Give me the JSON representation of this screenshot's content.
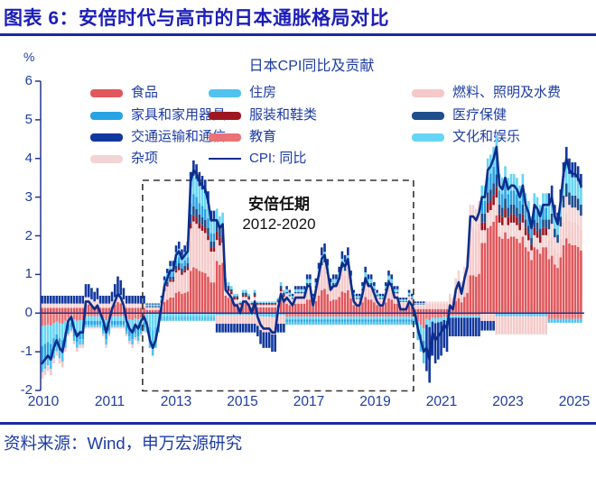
{
  "header": {
    "title": "图表 6：安倍时代与高市的日本通胀格局对比"
  },
  "footer": {
    "source": "资料来源：Wind，申万宏源研究"
  },
  "chart_data": {
    "type": "stacked-bar+line",
    "title": "日本CPI同比及贡献",
    "y_unit": "%",
    "ylim": [
      -2,
      6
    ],
    "y_ticks": [
      6,
      5,
      4,
      3,
      2,
      1,
      0,
      -1,
      -2
    ],
    "x_tick_labels": [
      "2010",
      "2011",
      "2013",
      "2015",
      "2017",
      "2019",
      "2021",
      "2023",
      "2025"
    ],
    "x_start": "2010-01",
    "x_end": "2025-06",
    "x_freq": "monthly",
    "grid": "off",
    "annotation": {
      "line1": "安倍任期",
      "line2": "2012-2020",
      "box_from": "2012-12",
      "box_to": "2020-08",
      "box_color": "#333333"
    },
    "axis_color": "#23368F",
    "components": [
      {
        "id": "food",
        "label": "食品",
        "color": "#E0585C"
      },
      {
        "id": "housing",
        "label": "住房",
        "color": "#4FC3F0"
      },
      {
        "id": "fuel",
        "label": "燃料、照明及水费",
        "color": "#F5C9C9"
      },
      {
        "id": "furniture",
        "label": "家具和家用器具",
        "color": "#29A3E3"
      },
      {
        "id": "clothing",
        "label": "服装和鞋类",
        "color": "#9E1620"
      },
      {
        "id": "medical",
        "label": "医疗保健",
        "color": "#1F4E8C"
      },
      {
        "id": "transport",
        "label": "交通运输和通信",
        "color": "#12389E"
      },
      {
        "id": "education",
        "label": "教育",
        "color": "#EA7276"
      },
      {
        "id": "culture",
        "label": "文化和娱乐",
        "color": "#66D5F5"
      },
      {
        "id": "misc",
        "label": "杂项",
        "color": "#F3D4D4"
      }
    ],
    "legend": {
      "rows": [
        [
          "food",
          "housing",
          "fuel"
        ],
        [
          "furniture",
          "clothing",
          "medical"
        ],
        [
          "transport",
          "education",
          "culture"
        ],
        [
          "misc",
          "cpi_line"
        ]
      ]
    },
    "line_series": {
      "name": "CPI: 同比",
      "color": "#0B2D8C",
      "start_year": 2010,
      "values_by_year": [
        [
          -1.3,
          -1.2,
          -1.1,
          -1.2,
          -0.9,
          -0.7,
          -0.9,
          -1.0,
          -0.6,
          -0.2,
          -0.1,
          -0.4
        ],
        [
          -0.6,
          -0.5,
          -0.5,
          0.3,
          0.3,
          0.2,
          0.1,
          0.2,
          0.0,
          -0.2,
          -0.5,
          -0.2
        ],
        [
          0.1,
          0.3,
          0.5,
          0.4,
          0.2,
          -0.2,
          -0.4,
          -0.5,
          -0.3,
          -0.4,
          -0.2,
          -0.1
        ],
        [
          -0.3,
          -0.7,
          -0.9,
          -0.7,
          -0.3,
          0.2,
          0.7,
          0.9,
          1.1,
          1.1,
          1.5,
          1.6
        ],
        [
          1.4,
          1.5,
          1.6,
          3.4,
          3.7,
          3.6,
          3.4,
          3.3,
          3.2,
          2.9,
          2.4,
          2.4
        ],
        [
          2.4,
          2.2,
          2.3,
          0.6,
          0.5,
          0.4,
          0.2,
          0.2,
          0.0,
          0.3,
          0.3,
          0.2
        ],
        [
          0.0,
          0.3,
          -0.1,
          -0.3,
          -0.4,
          -0.4,
          -0.4,
          -0.5,
          -0.5,
          0.1,
          0.5,
          0.3
        ],
        [
          0.4,
          0.3,
          0.2,
          0.4,
          0.4,
          0.4,
          0.4,
          0.7,
          0.7,
          0.2,
          0.6,
          1.0
        ],
        [
          1.4,
          1.5,
          1.1,
          0.6,
          0.7,
          0.7,
          0.9,
          1.3,
          1.2,
          1.4,
          0.8,
          0.3
        ],
        [
          0.2,
          0.2,
          0.5,
          0.9,
          0.7,
          0.7,
          0.5,
          0.3,
          0.2,
          0.2,
          0.5,
          0.8
        ],
        [
          0.7,
          0.4,
          0.4,
          0.1,
          0.1,
          0.1,
          0.3,
          0.2,
          0.0,
          -0.4,
          -0.7,
          -1.0
        ],
        [
          -0.9,
          -1.2,
          -0.5,
          -0.7,
          -0.6,
          -0.5,
          -0.3,
          -0.4,
          0.2,
          0.1,
          0.6,
          0.8
        ],
        [
          0.5,
          0.9,
          1.2,
          2.5,
          2.5,
          2.4,
          2.6,
          3.0,
          3.0,
          3.7,
          3.8,
          4.0
        ],
        [
          4.3,
          3.3,
          3.2,
          3.5,
          3.2,
          3.3,
          3.3,
          3.2,
          3.0,
          3.3,
          2.8,
          2.6
        ],
        [
          2.2,
          2.8,
          2.7,
          2.5,
          2.8,
          2.8,
          2.8,
          3.0,
          2.5,
          2.3,
          2.9,
          3.6
        ],
        [
          4.0,
          3.7,
          3.6,
          3.6,
          3.5,
          3.3
        ]
      ]
    },
    "stack_order": {
      "pos": [
        "food",
        "fuel",
        "misc",
        "clothing",
        "medical",
        "furniture",
        "housing",
        "culture",
        "transport"
      ],
      "neg": [
        "education",
        "culture",
        "furniture",
        "housing",
        "misc",
        "fuel",
        "transport"
      ]
    },
    "decomposition_phases": [
      {
        "from": 0,
        "to": 36,
        "pos_spread": 0.45,
        "neg_spread": 0.4,
        "pos": {
          "transport": 0.45,
          "food": 0.3,
          "misc": 0.25
        },
        "neg": {
          "culture": 0.3,
          "furniture": 0.25,
          "education": 0.2,
          "housing": 0.15,
          "fuel": 0.1
        }
      },
      {
        "from": 36,
        "to": 60,
        "pos_spread": 0.25,
        "neg_spread": 0.2,
        "pos": {
          "food": 0.3,
          "fuel": 0.3,
          "culture": 0.12,
          "furniture": 0.08,
          "transport": 0.1,
          "clothing": 0.04,
          "medical": 0.06
        },
        "neg": {
          "housing": 0.6,
          "culture": 0.4
        }
      },
      {
        "from": 60,
        "to": 84,
        "pos_spread": 0.3,
        "neg_spread": 0.5,
        "pos": {
          "food": 0.5,
          "clothing": 0.08,
          "medical": 0.1,
          "culture": 0.12,
          "misc": 0.2
        },
        "neg": {
          "transport": 0.45,
          "fuel": 0.45,
          "housing": 0.1
        }
      },
      {
        "from": 84,
        "to": 132,
        "pos_spread": 0.3,
        "neg_spread": 0.3,
        "pos": {
          "food": 0.35,
          "fuel": 0.3,
          "transport": 0.12,
          "culture": 0.1,
          "medical": 0.05,
          "misc": 0.08
        },
        "neg": {
          "housing": 0.25,
          "furniture": 0.2,
          "culture": 0.25,
          "education": 0.3
        }
      },
      {
        "from": 132,
        "to": 151,
        "pos_spread": 0.3,
        "neg_spread": 0.6,
        "pos": {
          "food": 0.35,
          "fuel": 0.45,
          "misc": 0.2
        },
        "neg": {
          "transport": 0.8,
          "education": 0.1,
          "culture": 0.1
        }
      },
      {
        "from": 151,
        "to": 156,
        "pos_spread": 0.3,
        "neg_spread": 0.45,
        "pos": {
          "food": 0.55,
          "furniture": 0.1,
          "culture": 0.12,
          "clothing": 0.06,
          "medical": 0.07,
          "misc": 0.1
        },
        "neg": {
          "transport": 0.55,
          "fuel": 0.45
        }
      },
      {
        "from": 156,
        "to": 174,
        "pos_spread": 0.3,
        "neg_spread": 0.55,
        "pos": {
          "food": 0.55,
          "furniture": 0.1,
          "culture": 0.12,
          "clothing": 0.06,
          "medical": 0.07,
          "misc": 0.1
        },
        "neg": {
          "fuel": 0.85,
          "housing": 0.15
        }
      },
      {
        "from": 174,
        "to": 186,
        "pos_spread": 0.3,
        "neg_spread": 0.25,
        "pos": {
          "food": 0.45,
          "fuel": 0.15,
          "culture": 0.12,
          "transport": 0.1,
          "medical": 0.08,
          "misc": 0.1
        },
        "neg": {
          "education": 0.6,
          "housing": 0.4
        }
      }
    ]
  }
}
